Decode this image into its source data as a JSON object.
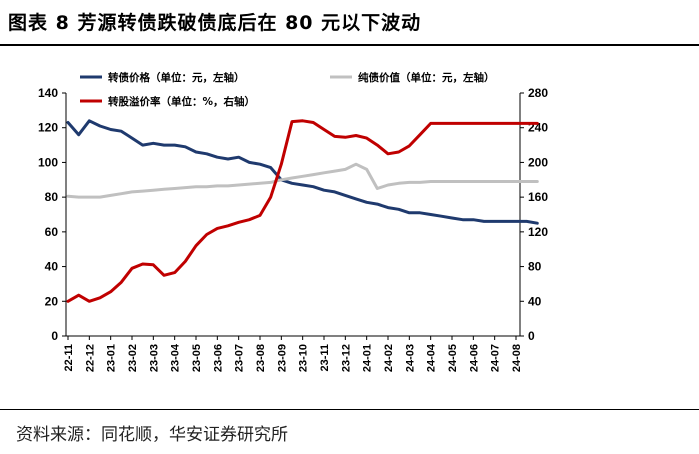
{
  "title": "图表 8  芳源转债跌破债底后在 80 元以下波动",
  "source": "资料来源：同花顺，华安证券研究所",
  "chart_data": {
    "type": "line",
    "categories": [
      "22-11",
      "22-12",
      "23-01",
      "23-02",
      "23-03",
      "23-04",
      "23-05",
      "23-06",
      "23-07",
      "23-08",
      "23-09",
      "23-10",
      "23-11",
      "23-12",
      "24-01",
      "24-02",
      "24-03",
      "24-04",
      "24-05",
      "24-06",
      "24-07",
      "24-08"
    ],
    "x": [
      0,
      0.5,
      1,
      1.5,
      2,
      2.5,
      3,
      3.5,
      4,
      4.5,
      5,
      5.5,
      6,
      6.5,
      7,
      7.5,
      8,
      8.5,
      9,
      9.5,
      10,
      10.5,
      11,
      11.5,
      12,
      12.5,
      13,
      13.5,
      14,
      14.5,
      15,
      15.5,
      16,
      16.5,
      17,
      17.5,
      18,
      18.5,
      19,
      19.5,
      20,
      20.5,
      21,
      21.5,
      22
    ],
    "left_axis": {
      "ylim": [
        0,
        140
      ],
      "ticks": [
        0,
        20,
        40,
        60,
        80,
        100,
        120,
        140
      ]
    },
    "right_axis": {
      "ylim": [
        0,
        280
      ],
      "ticks": [
        0,
        40,
        80,
        120,
        160,
        200,
        240,
        280
      ]
    },
    "series": [
      {
        "name": "转债价格（单位：元，左轴）",
        "axis": "left",
        "color": "#1f3a6e",
        "values": [
          123,
          116,
          124,
          121,
          119,
          118,
          114,
          110,
          111,
          110,
          110,
          109,
          106,
          105,
          103,
          102,
          103,
          100,
          99,
          97,
          90,
          88,
          87,
          86,
          84,
          83,
          81,
          79,
          77,
          76,
          74,
          73,
          71,
          71,
          70,
          69,
          68,
          67,
          67,
          66,
          66,
          66,
          66,
          66,
          65
        ]
      },
      {
        "name": "纯债价值（单位：元，左轴）",
        "axis": "left",
        "color": "#c0c0c0",
        "values": [
          80.5,
          80,
          80,
          80,
          81,
          82,
          83,
          83.5,
          84,
          84.5,
          85,
          85.5,
          86,
          86,
          86.5,
          86.5,
          87,
          87.5,
          88,
          88.5,
          90,
          91,
          92,
          93,
          94,
          95,
          96,
          99,
          96,
          85,
          87,
          88,
          88.5,
          88.5,
          89,
          89,
          89,
          89,
          89,
          89,
          89,
          89,
          89,
          89,
          89
        ]
      },
      {
        "name": "转股溢价率（单位：%，右轴）",
        "axis": "right",
        "color": "#c00000",
        "values": [
          40,
          47,
          40,
          44,
          51,
          62,
          78,
          83,
          82,
          70,
          73,
          86,
          104,
          117,
          124,
          127,
          131,
          134,
          139,
          160,
          198,
          247,
          248,
          246,
          238,
          230,
          229,
          231,
          228,
          220,
          210,
          212,
          219,
          232,
          245,
          245,
          245,
          245,
          245,
          245,
          245,
          245,
          245,
          245,
          245
        ]
      }
    ]
  }
}
